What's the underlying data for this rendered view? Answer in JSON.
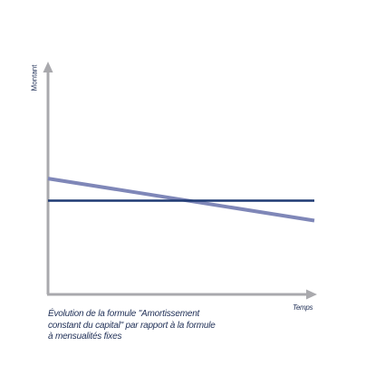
{
  "chart_data": {
    "type": "line",
    "title": "",
    "xlabel": "Temps",
    "ylabel": "Montant",
    "caption_lines": [
      "Évolution de la formule \"Amortissement",
      "constant du capital\" par rapport à la formule",
      "à mensualités fixes"
    ],
    "x": [
      0,
      1
    ],
    "xlim": [
      0,
      1
    ],
    "ylim": [
      0,
      1
    ],
    "series": [
      {
        "color": "#7f87b8",
        "values": [
          0.52,
          0.33
        ]
      },
      {
        "color": "#1f3a73",
        "values": [
          0.42,
          0.42
        ]
      }
    ],
    "grid": false,
    "axis_color": "#a9a9ad"
  }
}
